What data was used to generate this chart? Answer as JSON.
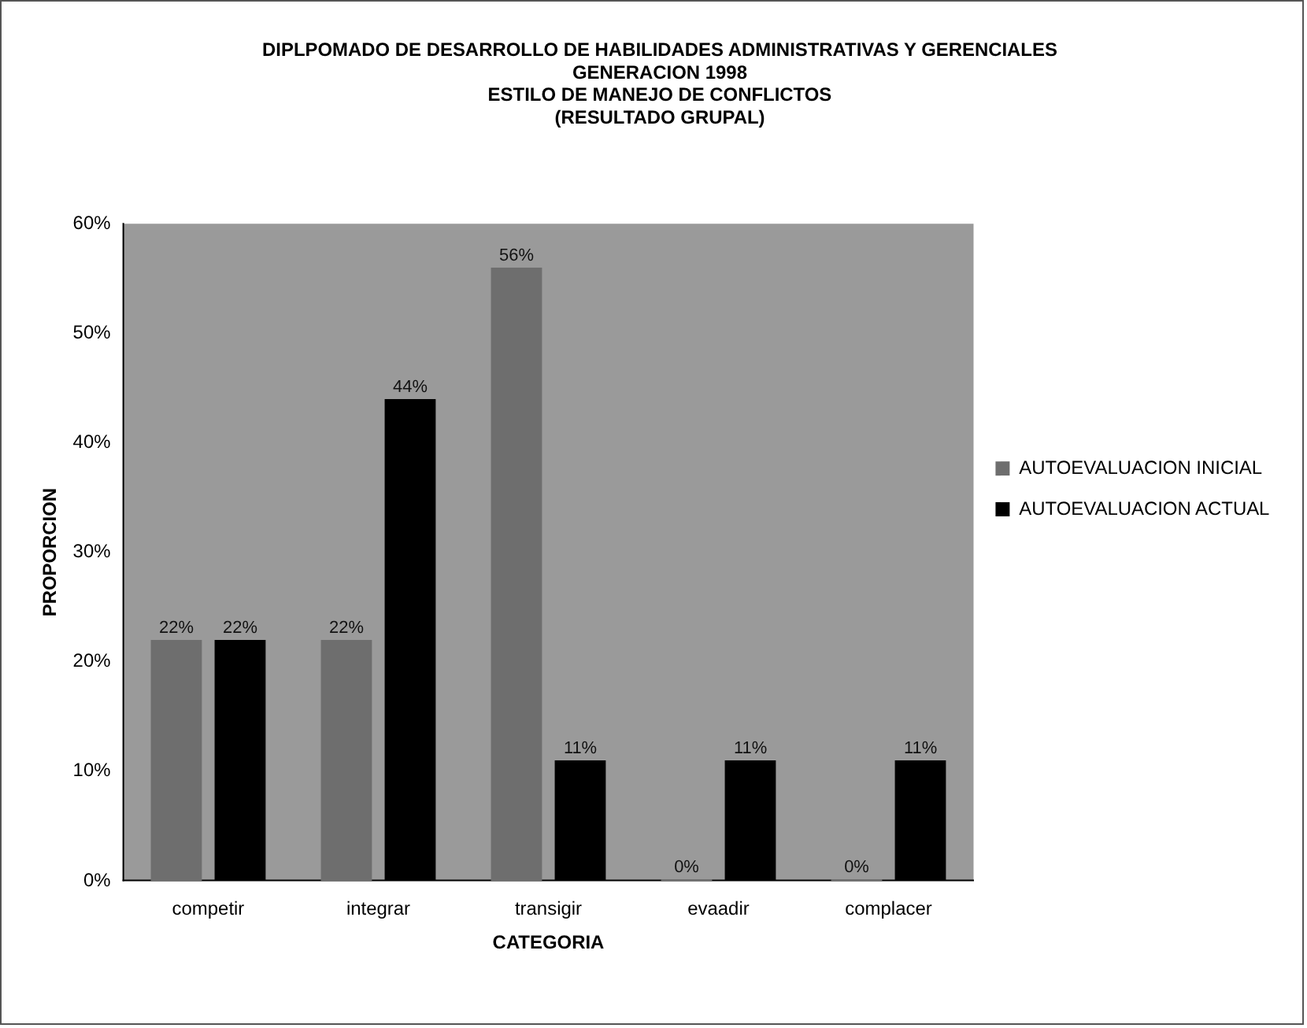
{
  "chart_data": {
    "type": "bar",
    "title": "DIPLPOMADO DE DESARROLLO DE HABILIDADES ADMINISTRATIVAS Y GERENCIALES\nGENERACION 1998\nESTILO DE MANEJO DE CONFLICTOS\n(RESULTADO GRUPAL)",
    "xlabel": "CATEGORIA",
    "ylabel": "PROPORCION",
    "categories": [
      "competir",
      "integrar",
      "transigir",
      "evaadir",
      "complacer"
    ],
    "series": [
      {
        "name": "AUTOEVALUACION INICIAL",
        "color": "#6e6e6e",
        "values": [
          22,
          22,
          56,
          0,
          0
        ],
        "value_labels": [
          "22%",
          "22%",
          "56%",
          "0%",
          "0%"
        ]
      },
      {
        "name": "AUTOEVALUACION ACTUAL",
        "color": "#000000",
        "values": [
          22,
          44,
          11,
          11,
          11
        ],
        "value_labels": [
          "22%",
          "44%",
          "11%",
          "11%",
          "11%"
        ]
      }
    ],
    "ylim": [
      0,
      60
    ],
    "yticks": [
      {
        "value": 0,
        "label": "0%"
      },
      {
        "value": 10,
        "label": "10%"
      },
      {
        "value": 20,
        "label": "20%"
      },
      {
        "value": 30,
        "label": "30%"
      },
      {
        "value": 40,
        "label": "40%"
      },
      {
        "value": 50,
        "label": "50%"
      },
      {
        "value": 60,
        "label": "60%"
      }
    ],
    "legend": "right"
  }
}
